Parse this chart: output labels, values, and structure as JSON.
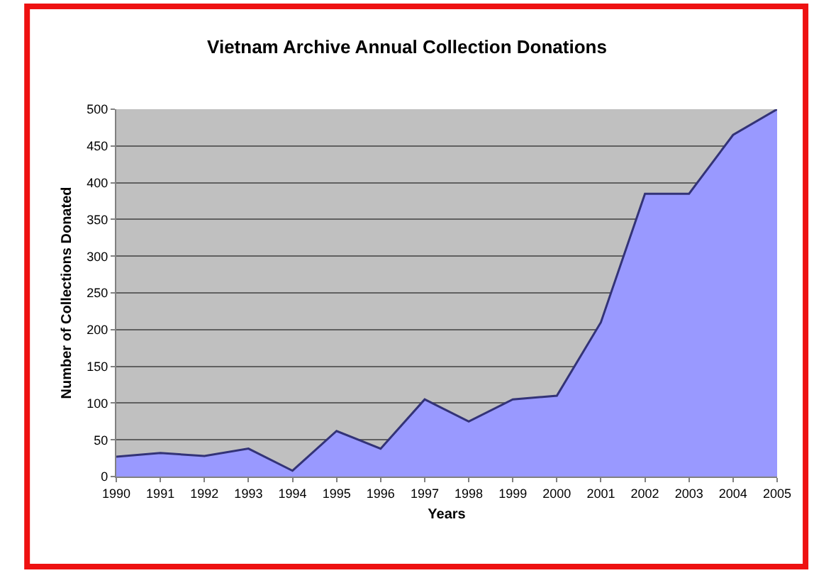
{
  "chart_data": {
    "type": "area",
    "title": "Vietnam Archive Annual Collection Donations",
    "xlabel": "Years",
    "ylabel": "Number of Collections Donated",
    "categories": [
      "1990",
      "1991",
      "1992",
      "1993",
      "1994",
      "1995",
      "1996",
      "1997",
      "1998",
      "1999",
      "2000",
      "2001",
      "2002",
      "2003",
      "2004",
      "2005"
    ],
    "series": [
      {
        "color": "#9999ff",
        "values": [
          27,
          32,
          28,
          38,
          8,
          62,
          38,
          105,
          75,
          105,
          110,
          210,
          385,
          385,
          465,
          500
        ]
      }
    ],
    "ylim": [
      0,
      500
    ],
    "yticks": [
      0,
      50,
      100,
      150,
      200,
      250,
      300,
      350,
      400,
      450,
      500
    ],
    "grid": "y"
  }
}
